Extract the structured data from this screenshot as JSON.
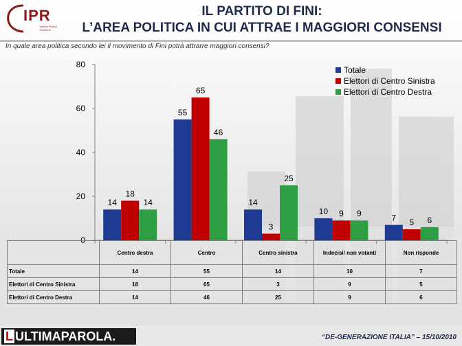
{
  "header": {
    "logo_text": "IPR",
    "logo_subtext": "Istituto Piepoli Ricerche",
    "title_line1": "IL PARTITO DI FINI:",
    "title_line2": "L’AREA POLITICA IN CUI ATTRAE I MAGGIORI CONSENSI",
    "question": "In quale area politica secondo lei il movimento di Fini potrà attrarre maggiori consensi?"
  },
  "chart_data": {
    "type": "bar",
    "categories": [
      "Centro destra",
      "Centro",
      "Centro sinistra",
      "Indecisi/ non votanti",
      "Non risponde"
    ],
    "series": [
      {
        "name": "Totale",
        "values": [
          14,
          55,
          14,
          10,
          7
        ],
        "color": "#1f3a93"
      },
      {
        "name": "Elettori di Centro Sinistra",
        "values": [
          18,
          65,
          3,
          9,
          5
        ],
        "color": "#c00000"
      },
      {
        "name": "Elettori di Centro Destra",
        "values": [
          14,
          46,
          25,
          9,
          6
        ],
        "color": "#2e9e45"
      }
    ],
    "ylim": [
      0,
      80
    ],
    "yticks": [
      "0",
      "20",
      "40",
      "60",
      "80"
    ],
    "legend_position": "top-right",
    "grid": false
  },
  "table": {
    "header_categories": [
      "Centro destra",
      "Centro",
      "Centro sinistra",
      "Indecisi/ non votanti",
      "Non risponde"
    ],
    "rows": [
      {
        "label": "Totale",
        "values": [
          "14",
          "55",
          "14",
          "10",
          "7"
        ]
      },
      {
        "label": "Elettori di Centro Sinistra",
        "values": [
          "18",
          "65",
          "3",
          "9",
          "5"
        ]
      },
      {
        "label": "Elettori di Centro Destra",
        "values": [
          "14",
          "46",
          "25",
          "9",
          "6"
        ]
      }
    ]
  },
  "footer": {
    "brand": "ULTIMAPAROLA.",
    "brand_prefix": "L",
    "note": "“DE-GENERAZIONE ITALIA” – 15/10/2010"
  }
}
